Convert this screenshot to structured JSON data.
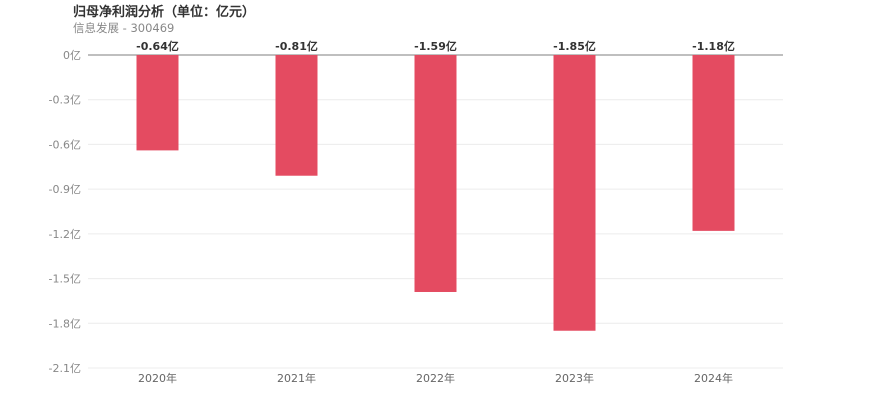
{
  "header": {
    "title": "归母净利润分析（单位：亿元）",
    "subtitle": "信息发展 - 300469"
  },
  "chart_data": {
    "type": "bar",
    "categories": [
      "2020年",
      "2021年",
      "2022年",
      "2023年",
      "2024年"
    ],
    "values": [
      -0.64,
      -0.81,
      -1.59,
      -1.85,
      -1.18
    ],
    "data_labels": [
      "-0.64亿",
      "-0.81亿",
      "-1.59亿",
      "-1.85亿",
      "-1.18亿"
    ],
    "yticks": [
      0,
      -0.3,
      -0.6,
      -0.9,
      -1.2,
      -1.5,
      -1.8,
      -2.1
    ],
    "ytick_labels": [
      "0亿",
      "-0.3亿",
      "-0.6亿",
      "-0.9亿",
      "-1.2亿",
      "-1.5亿",
      "-1.8亿",
      "-2.1亿"
    ],
    "ylim": [
      -2.1,
      0
    ],
    "title": "归母净利润分析（单位：亿元）",
    "xlabel": "",
    "ylabel": "",
    "grid": true,
    "bar_color": "#e44b61"
  }
}
